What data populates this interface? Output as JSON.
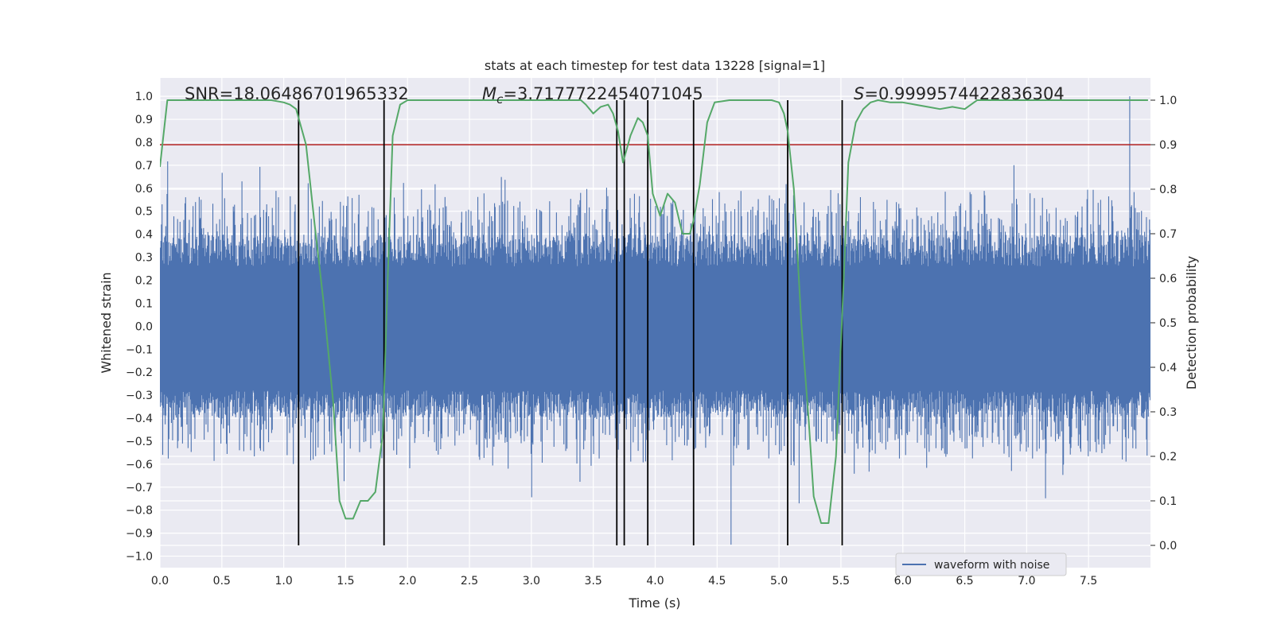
{
  "chart_data": {
    "type": "line",
    "title": "stats at each timestep for test data 13228 [signal=1]",
    "xlabel": "Time (s)",
    "ylabel": "Whitened strain",
    "ylabel_right": "Detection probability",
    "xlim": [
      0.0,
      8.0
    ],
    "ylim": [
      -1.05,
      1.08
    ],
    "ylim_right": [
      -0.05,
      1.05
    ],
    "x_ticks": [
      "0.0",
      "0.5",
      "1.0",
      "1.5",
      "2.0",
      "2.5",
      "3.0",
      "3.5",
      "4.0",
      "4.5",
      "5.0",
      "5.5",
      "6.0",
      "6.5",
      "7.0",
      "7.5"
    ],
    "y_ticks": [
      "1.0",
      "0.9",
      "0.8",
      "0.7",
      "0.6",
      "0.5",
      "0.4",
      "0.3",
      "0.2",
      "0.1",
      "0.0",
      "-0.1",
      "-0.2",
      "-0.3",
      "-0.4",
      "-0.5",
      "-0.6",
      "-0.7",
      "-0.8",
      "-0.9",
      "-1.0"
    ],
    "y_ticks_right": [
      "1.0",
      "0.9",
      "0.8",
      "0.7",
      "0.6",
      "0.5",
      "0.4",
      "0.3",
      "0.2",
      "0.1",
      "0.0"
    ],
    "grid": true,
    "legend": {
      "position": "lower-right",
      "entries": [
        "waveform with noise"
      ]
    },
    "annotations": {
      "snr": "SNR=18.06486701965332",
      "mc_symbol": "M",
      "mc_sub": "c",
      "mc_value": "=3.7177722454071045",
      "s_symbol": "S",
      "s_value": "=0.9999574422836304"
    },
    "threshold": {
      "value": 0.9,
      "axis": "right",
      "color": "#b22222"
    },
    "event_lines": [
      1.12,
      1.81,
      3.69,
      3.75,
      3.94,
      4.31,
      5.07,
      5.51
    ],
    "event_line_range_right": [
      0.0,
      1.0
    ],
    "series": [
      {
        "name": "waveform with noise",
        "axis": "left",
        "color": "#4c72b0",
        "description_range": [
          -0.95,
          1.0
        ],
        "samples": 1600,
        "seed": 13228
      },
      {
        "name": "detection probability",
        "axis": "right",
        "color": "#55a868",
        "x": [
          0.0,
          0.06,
          0.12,
          0.2,
          0.3,
          0.4,
          0.5,
          0.6,
          0.7,
          0.8,
          0.9,
          1.0,
          1.05,
          1.1,
          1.13,
          1.18,
          1.25,
          1.32,
          1.4,
          1.45,
          1.5,
          1.56,
          1.62,
          1.68,
          1.74,
          1.8,
          1.84,
          1.88,
          1.94,
          2.0,
          2.1,
          2.2,
          2.4,
          2.6,
          2.8,
          3.0,
          3.2,
          3.3,
          3.4,
          3.44,
          3.5,
          3.56,
          3.62,
          3.66,
          3.7,
          3.74,
          3.8,
          3.86,
          3.9,
          3.94,
          3.98,
          4.04,
          4.1,
          4.16,
          4.22,
          4.28,
          4.31,
          4.36,
          4.42,
          4.48,
          4.6,
          4.8,
          4.94,
          5.0,
          5.04,
          5.07,
          5.12,
          5.18,
          5.24,
          5.28,
          5.34,
          5.4,
          5.46,
          5.52,
          5.56,
          5.62,
          5.68,
          5.74,
          5.8,
          5.9,
          6.0,
          6.1,
          6.2,
          6.3,
          6.4,
          6.5,
          6.6,
          6.7,
          6.8,
          6.9,
          7.0,
          7.2,
          7.4,
          7.6,
          7.8,
          7.98
        ],
        "y": [
          0.85,
          1.0,
          1.0,
          1.0,
          1.0,
          1.0,
          1.0,
          1.0,
          1.0,
          1.0,
          1.0,
          0.995,
          0.99,
          0.98,
          0.95,
          0.9,
          0.72,
          0.55,
          0.32,
          0.1,
          0.06,
          0.06,
          0.1,
          0.1,
          0.12,
          0.25,
          0.6,
          0.92,
          0.99,
          1.0,
          1.0,
          1.0,
          1.0,
          1.0,
          1.0,
          1.0,
          1.0,
          1.0,
          1.0,
          0.99,
          0.97,
          0.985,
          0.99,
          0.97,
          0.93,
          0.86,
          0.92,
          0.96,
          0.95,
          0.92,
          0.79,
          0.74,
          0.79,
          0.77,
          0.7,
          0.7,
          0.73,
          0.81,
          0.95,
          0.995,
          1.0,
          1.0,
          1.0,
          0.995,
          0.97,
          0.93,
          0.8,
          0.5,
          0.28,
          0.11,
          0.05,
          0.05,
          0.2,
          0.58,
          0.86,
          0.95,
          0.98,
          0.995,
          1.0,
          0.995,
          0.995,
          0.99,
          0.985,
          0.98,
          0.985,
          0.98,
          1.0,
          1.0,
          1.0,
          1.0,
          1.0,
          1.0,
          1.0,
          1.0,
          1.0,
          1.0
        ]
      }
    ]
  }
}
